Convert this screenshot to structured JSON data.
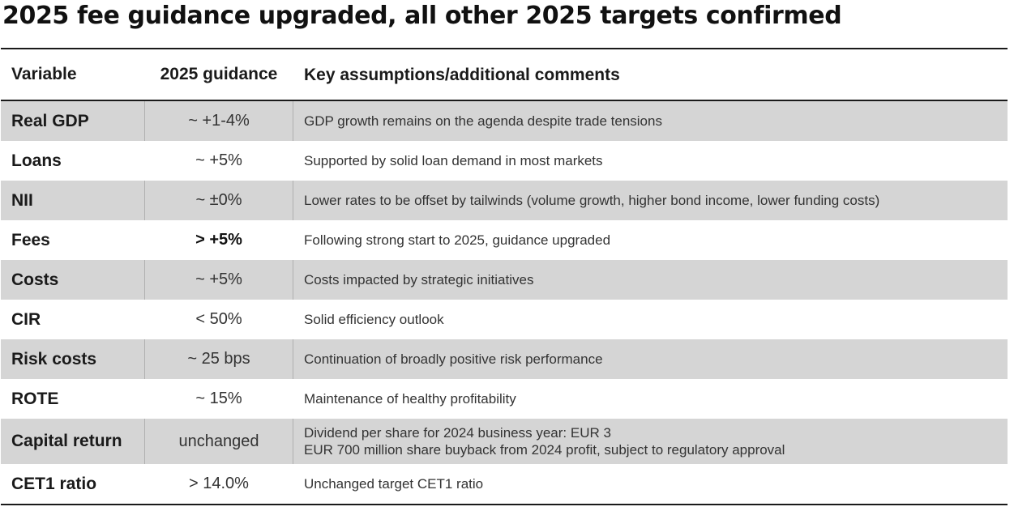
{
  "title": "2025 fee guidance upgraded, all other 2025 targets confirmed",
  "table": {
    "headers": [
      "Variable",
      "2025 guidance",
      "Key assumptions/additional comments"
    ],
    "rows": [
      {
        "variable": "Real GDP",
        "guidance": "~ +1-4%",
        "comment": [
          "GDP growth remains on the agenda despite trade tensions"
        ]
      },
      {
        "variable": "Loans",
        "guidance": "~ +5%",
        "comment": [
          "Supported by solid loan demand in most markets"
        ]
      },
      {
        "variable": "NII",
        "guidance": "~ ±0%",
        "comment": [
          "Lower rates to be offset by tailwinds (volume growth, higher bond income, lower funding costs)"
        ]
      },
      {
        "variable": "Fees",
        "guidance": "> +5%",
        "comment": [
          "Following strong start to 2025, guidance upgraded"
        ]
      },
      {
        "variable": "Costs",
        "guidance": "~ +5%",
        "comment": [
          "Costs impacted by strategic initiatives"
        ]
      },
      {
        "variable": "CIR",
        "guidance": "< 50%",
        "comment": [
          "Solid efficiency outlook"
        ]
      },
      {
        "variable": "Risk costs",
        "guidance": "~ 25 bps",
        "comment": [
          "Continuation of broadly positive risk performance"
        ]
      },
      {
        "variable": "ROTE",
        "guidance": "~ 15%",
        "comment": [
          "Maintenance of healthy profitability"
        ]
      },
      {
        "variable": "Capital return",
        "guidance": "unchanged",
        "comment": [
          "Dividend per share for 2024 business year: EUR 3",
          "EUR 700 million share buyback from 2024 profit, subject to regulatory approval"
        ]
      },
      {
        "variable": "CET1 ratio",
        "guidance": "> 14.0%",
        "comment": [
          "Unchanged target CET1 ratio"
        ]
      }
    ]
  }
}
